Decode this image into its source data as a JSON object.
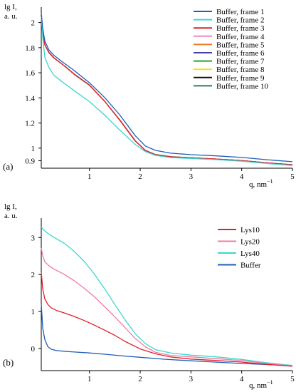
{
  "chart_data": [
    {
      "type": "line",
      "panel_label": "(a)",
      "ylabel_lines": [
        "lg I,",
        "a. u."
      ],
      "xlabel": "q, nm",
      "xlabel_sup": "−1",
      "xlim": [
        0.05,
        5
      ],
      "ylim": [
        0.84,
        2.1
      ],
      "x_ticks": [
        1,
        2,
        3,
        4,
        5
      ],
      "y_ticks": [
        0.9,
        1,
        1.2,
        1.4,
        1.6,
        1.8,
        2
      ],
      "y_tick_labels": [
        "0.9",
        "1",
        "1.2",
        "1.4",
        "1.6",
        "1.8",
        "2"
      ],
      "x_tick_labels": [
        "1",
        "2",
        "3",
        "4",
        "5"
      ],
      "legend_position": "top-right",
      "series": [
        {
          "name": "Buffer, frame 1",
          "color": "#1f5fb5",
          "x": [
            0.05,
            0.08,
            0.12,
            0.2,
            0.3,
            0.5,
            0.7,
            1.0,
            1.3,
            1.6,
            1.9,
            2.1,
            2.3,
            2.6,
            3.0,
            3.5,
            4.0,
            4.5,
            5.0
          ],
          "y": [
            2.08,
            1.95,
            1.85,
            1.78,
            1.74,
            1.68,
            1.62,
            1.52,
            1.4,
            1.26,
            1.1,
            1.02,
            0.985,
            0.96,
            0.945,
            0.935,
            0.925,
            0.91,
            0.895
          ]
        },
        {
          "name": "Buffer, frame 2",
          "color": "#3dd6d0",
          "x": [
            0.05,
            0.08,
            0.12,
            0.2,
            0.3,
            0.5,
            0.7,
            1.0,
            1.3,
            1.6,
            1.9,
            2.1,
            2.3,
            2.6,
            3.0,
            3.5,
            4.0,
            4.5,
            5.0
          ],
          "y": [
            2.05,
            1.88,
            1.72,
            1.64,
            1.58,
            1.52,
            1.46,
            1.37,
            1.26,
            1.14,
            1.03,
            0.975,
            0.945,
            0.925,
            0.915,
            0.905,
            0.895,
            0.88,
            0.865
          ]
        },
        {
          "name": "Buffer, frame 3",
          "color": "#e0202a",
          "x": [
            0.05,
            0.08,
            0.12,
            0.2,
            0.3,
            0.5,
            0.7,
            1.0,
            1.3,
            1.6,
            1.9,
            2.1,
            2.3,
            2.6,
            3.0,
            3.5,
            4.0,
            4.5,
            5.0
          ],
          "y": [
            2.06,
            1.92,
            1.82,
            1.76,
            1.72,
            1.66,
            1.59,
            1.5,
            1.37,
            1.22,
            1.06,
            0.985,
            0.95,
            0.93,
            0.92,
            0.91,
            0.9,
            0.885,
            0.87
          ]
        },
        {
          "name": "Buffer, frame 4",
          "color": "#f08ab8",
          "x": [
            0.05,
            0.08,
            0.12,
            0.2,
            0.3,
            0.5,
            0.7,
            1.0,
            1.3,
            1.6,
            1.9,
            2.1,
            2.3,
            2.6,
            3.0,
            3.5,
            4.0,
            4.5,
            5.0
          ],
          "y": [
            2.06,
            1.92,
            1.82,
            1.76,
            1.72,
            1.66,
            1.59,
            1.5,
            1.37,
            1.22,
            1.06,
            0.985,
            0.95,
            0.93,
            0.92,
            0.91,
            0.9,
            0.885,
            0.87
          ]
        },
        {
          "name": "Buffer, frame 5",
          "color": "#f07a20",
          "x": [
            0.05,
            0.08,
            0.12,
            0.2,
            0.3,
            0.5,
            0.7,
            1.0,
            1.3,
            1.6,
            1.9,
            2.1,
            2.3,
            2.6,
            3.0,
            3.5,
            4.0,
            4.5,
            5.0
          ],
          "y": [
            2.06,
            1.92,
            1.82,
            1.76,
            1.72,
            1.66,
            1.59,
            1.5,
            1.37,
            1.22,
            1.06,
            0.985,
            0.95,
            0.93,
            0.92,
            0.91,
            0.9,
            0.885,
            0.87
          ]
        },
        {
          "name": "Buffer, frame 6",
          "color": "#4a3ea8",
          "x": [
            0.05,
            0.08,
            0.12,
            0.2,
            0.3,
            0.5,
            0.7,
            1.0,
            1.3,
            1.6,
            1.9,
            2.1,
            2.3,
            2.6,
            3.0,
            3.5,
            4.0,
            4.5,
            5.0
          ],
          "y": [
            2.06,
            1.92,
            1.82,
            1.76,
            1.72,
            1.66,
            1.59,
            1.5,
            1.37,
            1.22,
            1.06,
            0.985,
            0.95,
            0.93,
            0.92,
            0.91,
            0.9,
            0.885,
            0.87
          ]
        },
        {
          "name": "Buffer, frame 7",
          "color": "#22a82a",
          "x": [
            0.05,
            0.08,
            0.12,
            0.2,
            0.3,
            0.5,
            0.7,
            1.0,
            1.3,
            1.6,
            1.9,
            2.1,
            2.3,
            2.6,
            3.0,
            3.5,
            4.0,
            4.5,
            5.0
          ],
          "y": [
            2.06,
            1.92,
            1.82,
            1.76,
            1.72,
            1.66,
            1.59,
            1.5,
            1.37,
            1.22,
            1.06,
            0.985,
            0.95,
            0.93,
            0.92,
            0.91,
            0.9,
            0.885,
            0.87
          ]
        },
        {
          "name": "Buffer, frame 8",
          "color": "#f2e21a",
          "x": [
            0.05,
            0.08,
            0.12,
            0.2,
            0.3,
            0.5,
            0.7,
            1.0,
            1.3,
            1.6,
            1.9,
            2.1,
            2.3,
            2.6,
            3.0,
            3.5,
            4.0,
            4.5,
            5.0
          ],
          "y": [
            2.06,
            1.92,
            1.82,
            1.76,
            1.72,
            1.66,
            1.59,
            1.5,
            1.37,
            1.22,
            1.06,
            0.985,
            0.95,
            0.93,
            0.92,
            0.91,
            0.9,
            0.885,
            0.87
          ]
        },
        {
          "name": "Buffer, frame 9",
          "color": "#111111",
          "x": [
            0.05,
            0.08,
            0.12,
            0.2,
            0.3,
            0.5,
            0.7,
            1.0,
            1.3,
            1.6,
            1.9,
            2.1,
            2.3,
            2.6,
            3.0,
            3.5,
            4.0,
            4.5,
            5.0
          ],
          "y": [
            2.06,
            1.92,
            1.82,
            1.76,
            1.72,
            1.66,
            1.59,
            1.5,
            1.37,
            1.22,
            1.06,
            0.985,
            0.95,
            0.93,
            0.92,
            0.91,
            0.9,
            0.885,
            0.87
          ]
        },
        {
          "name": "Buffer, frame 10",
          "color": "#2e7a64",
          "x": [
            0.05,
            0.08,
            0.12,
            0.2,
            0.3,
            0.5,
            0.7,
            1.0,
            1.3,
            1.6,
            1.9,
            2.1,
            2.3,
            2.6,
            3.0,
            3.5,
            4.0,
            4.5,
            5.0
          ],
          "y": [
            2.06,
            1.92,
            1.82,
            1.76,
            1.72,
            1.66,
            1.59,
            1.5,
            1.37,
            1.22,
            1.06,
            0.985,
            0.95,
            0.93,
            0.92,
            0.91,
            0.9,
            0.885,
            0.87
          ]
        }
      ]
    },
    {
      "type": "line",
      "panel_label": "(b)",
      "ylabel_lines": [
        "lg I,",
        "a. u."
      ],
      "xlabel": "q, nm",
      "xlabel_sup": "−1",
      "xlim": [
        0.05,
        5
      ],
      "ylim": [
        -0.6,
        3.45
      ],
      "x_ticks": [
        1,
        2,
        3,
        4,
        5
      ],
      "y_ticks": [
        0,
        1,
        2,
        3
      ],
      "y_tick_labels": [
        "0",
        "1",
        "2",
        "3"
      ],
      "x_tick_labels": [
        "1",
        "2",
        "3",
        "4",
        "5"
      ],
      "legend_position": "top-right",
      "series": [
        {
          "name": "Lys10",
          "color": "#e0202a",
          "x": [
            0.05,
            0.08,
            0.12,
            0.18,
            0.25,
            0.35,
            0.5,
            0.7,
            0.9,
            1.1,
            1.3,
            1.5,
            1.7,
            2.0,
            2.3,
            2.6,
            3.0,
            3.5,
            4.0,
            4.5,
            5.0
          ],
          "y": [
            2.05,
            1.6,
            1.35,
            1.2,
            1.1,
            1.02,
            0.95,
            0.86,
            0.76,
            0.64,
            0.5,
            0.35,
            0.18,
            -0.02,
            -0.14,
            -0.22,
            -0.28,
            -0.33,
            -0.38,
            -0.44,
            -0.48
          ]
        },
        {
          "name": "Lys20",
          "color": "#f07aa8",
          "x": [
            0.05,
            0.08,
            0.12,
            0.2,
            0.3,
            0.5,
            0.7,
            0.9,
            1.1,
            1.3,
            1.5,
            1.7,
            1.9,
            2.1,
            2.3,
            2.6,
            3.0,
            3.5,
            4.0,
            4.5,
            5.0
          ],
          "y": [
            2.7,
            2.5,
            2.35,
            2.25,
            2.15,
            2.0,
            1.82,
            1.62,
            1.4,
            1.14,
            0.86,
            0.56,
            0.26,
            0.04,
            -0.1,
            -0.18,
            -0.22,
            -0.28,
            -0.34,
            -0.42,
            -0.47
          ]
        },
        {
          "name": "Lys40",
          "color": "#3dd6d0",
          "x": [
            0.05,
            0.1,
            0.2,
            0.3,
            0.5,
            0.7,
            0.9,
            1.1,
            1.3,
            1.5,
            1.7,
            1.9,
            2.1,
            2.3,
            2.6,
            3.0,
            3.5,
            4.0,
            4.5,
            5.0
          ],
          "y": [
            3.28,
            3.2,
            3.1,
            3.02,
            2.85,
            2.62,
            2.34,
            2.0,
            1.62,
            1.2,
            0.78,
            0.4,
            0.12,
            -0.04,
            -0.12,
            -0.17,
            -0.22,
            -0.3,
            -0.4,
            -0.47
          ]
        },
        {
          "name": "Buffer",
          "color": "#1f5fb5",
          "x": [
            0.05,
            0.08,
            0.12,
            0.18,
            0.25,
            0.35,
            0.5,
            0.7,
            1.0,
            1.3,
            1.6,
            2.0,
            2.5,
            3.0,
            3.5,
            4.0,
            4.5,
            5.0
          ],
          "y": [
            1.2,
            0.55,
            0.25,
            0.05,
            -0.03,
            -0.07,
            -0.08,
            -0.09,
            -0.11,
            -0.15,
            -0.2,
            -0.25,
            -0.3,
            -0.33,
            -0.36,
            -0.4,
            -0.44,
            -0.47
          ]
        }
      ]
    }
  ]
}
